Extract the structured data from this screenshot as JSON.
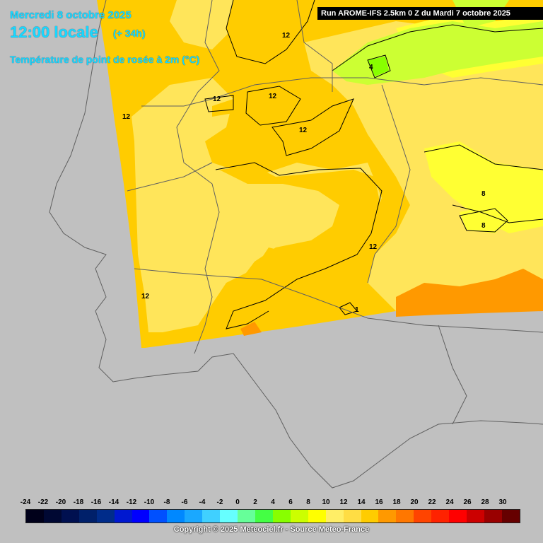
{
  "header": {
    "date": "Mercredi 8 octobre 2025",
    "time": "12:00 locale",
    "lead": "(+ 34h)",
    "variable": "Température de point de rosée à 2m (°C)",
    "run": "Run AROME-IFS 2.5km 0 Z du Mardi 7 octobre 2025"
  },
  "contour_labels": [
    "12",
    "12",
    "12",
    "12",
    "12",
    "4",
    "8",
    "8",
    "12",
    "12",
    "1"
  ],
  "legend": {
    "ticks": [
      "-24",
      "-22",
      "-20",
      "-18",
      "-16",
      "-14",
      "-12",
      "-10",
      "-8",
      "-6",
      "-4",
      "-2",
      "0",
      "2",
      "4",
      "6",
      "8",
      "10",
      "12",
      "14",
      "16",
      "18",
      "20",
      "22",
      "24",
      "26",
      "28",
      "30"
    ],
    "colors": [
      "#00001a",
      "#000833",
      "#001050",
      "#00206a",
      "#002c8a",
      "#0018d0",
      "#0000ff",
      "#0050ff",
      "#0088ff",
      "#1aa8ff",
      "#40d0ff",
      "#66ffff",
      "#66ff99",
      "#44ff44",
      "#88ff00",
      "#ccff00",
      "#ffff00",
      "#ffee66",
      "#ffdd44",
      "#ffcc00",
      "#ff9900",
      "#ff7700",
      "#ff4400",
      "#ff2200",
      "#ff0000",
      "#cc0000",
      "#990000",
      "#660000"
    ]
  },
  "footer": {
    "copyright": "Copyright © 2025 Meteociel.fr - Source Meteo-France"
  }
}
